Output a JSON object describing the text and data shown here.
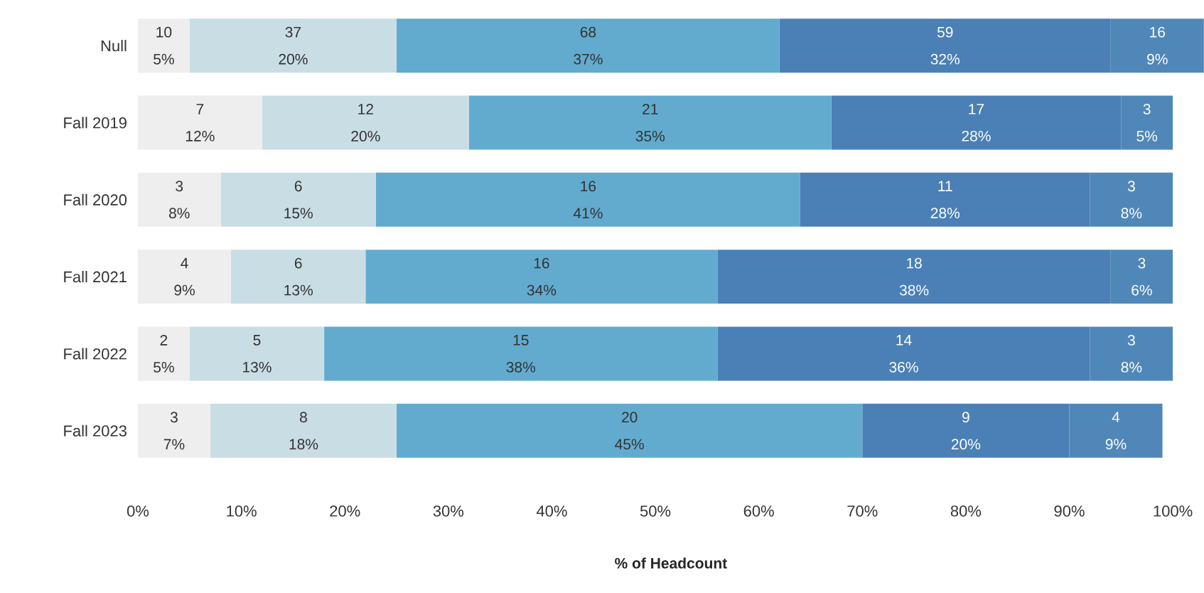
{
  "chart_data": {
    "type": "bar",
    "orientation": "horizontal",
    "stacked": true,
    "categories": [
      "Null",
      "Fall 2019",
      "Fall 2020",
      "Fall 2021",
      "Fall 2022",
      "Fall 2023"
    ],
    "series": [
      {
        "color": "#eeeeee",
        "values": [
          5,
          12,
          8,
          9,
          5,
          7
        ],
        "value_labels": [
          "10 5%",
          "7 12%",
          "3 8%",
          "4 9%",
          "2 5%",
          "3 7%"
        ]
      },
      {
        "color": "#c9dde4",
        "values": [
          20,
          20,
          15,
          13,
          13,
          18
        ],
        "value_labels": [
          "37 20%",
          "12 20%",
          "6 15%",
          "6 13%",
          "5 13%",
          "8 18%"
        ]
      },
      {
        "color": "#62abcf",
        "values": [
          37,
          35,
          41,
          34,
          38,
          45
        ],
        "value_labels": [
          "68 37%",
          "21 35%",
          "16 41%",
          "16 34%",
          "15 38%",
          "20 45%"
        ]
      },
      {
        "color": "#4a80b6",
        "values": [
          32,
          28,
          28,
          38,
          36,
          20
        ],
        "value_labels": [
          "59 32%",
          "17 28%",
          "11 28%",
          "18 38%",
          "14 36%",
          "9 20%"
        ]
      },
      {
        "color": "#5087b9",
        "values": [
          9,
          5,
          8,
          6,
          8,
          9
        ],
        "value_labels": [
          "16 9%",
          "3 5%",
          "3 8%",
          "3 6%",
          "3 8%",
          "4 9%"
        ]
      }
    ],
    "xlim": [
      0,
      103
    ],
    "xticks": [
      {
        "value": 0,
        "label": "0%"
      },
      {
        "value": 10,
        "label": "10%"
      },
      {
        "value": 20,
        "label": "20%"
      },
      {
        "value": 30,
        "label": "30%"
      },
      {
        "value": 40,
        "label": "40%"
      },
      {
        "value": 50,
        "label": "50%"
      },
      {
        "value": 60,
        "label": "60%"
      },
      {
        "value": 70,
        "label": "70%"
      },
      {
        "value": 80,
        "label": "80%"
      },
      {
        "value": 90,
        "label": "90%"
      },
      {
        "value": 100,
        "label": "100%"
      }
    ],
    "xlabel": "% of Headcount"
  }
}
